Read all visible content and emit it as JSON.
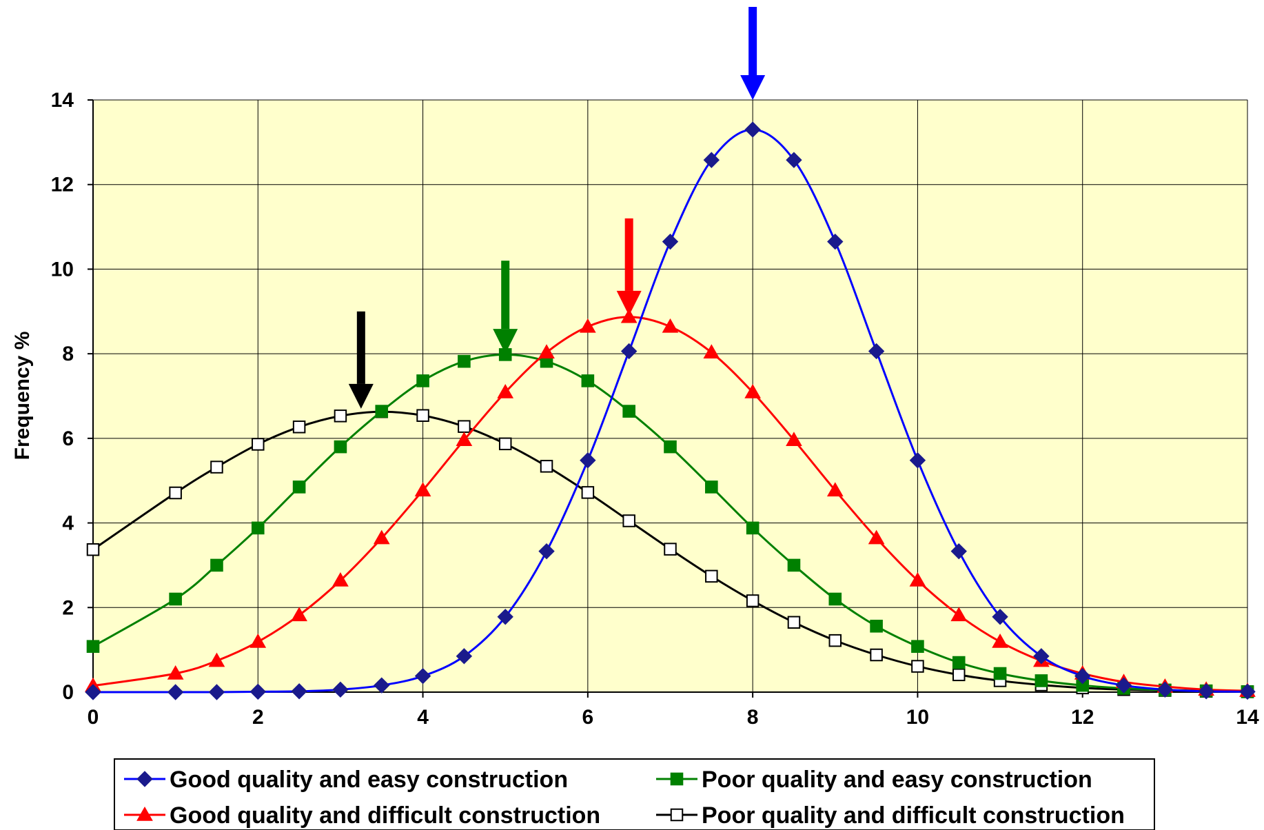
{
  "chart_data": {
    "type": "line",
    "title": "",
    "xlabel": "",
    "ylabel": "Frequency %",
    "xlim": [
      0,
      14
    ],
    "ylim": [
      0,
      14
    ],
    "x_ticks": [
      "0",
      "2",
      "4",
      "6",
      "8",
      "10",
      "12",
      "14"
    ],
    "y_ticks": [
      "0",
      "2",
      "4",
      "6",
      "8",
      "10",
      "12",
      "14"
    ],
    "grid": true,
    "plot_background": "#ffffcc",
    "legend_position": "bottom",
    "x": [
      0,
      1,
      1.5,
      2,
      2.5,
      3,
      3.5,
      4,
      4.5,
      5,
      5.5,
      6,
      6.5,
      7,
      7.5,
      8,
      8.5,
      9,
      9.5,
      10,
      10.5,
      11,
      11.5,
      12,
      12.5,
      13,
      13.5,
      14
    ],
    "series": [
      {
        "name": "Good quality and easy construction",
        "color": "#0000ff",
        "marker_color": "#1a1a8c",
        "marker": "diamond",
        "peak_x": 8,
        "values": [
          0.0,
          0.0,
          0.0,
          0.01,
          0.02,
          0.06,
          0.16,
          0.38,
          0.85,
          1.78,
          3.33,
          5.48,
          8.06,
          10.65,
          12.58,
          13.3,
          12.58,
          10.65,
          8.06,
          5.48,
          3.33,
          1.78,
          0.85,
          0.38,
          0.16,
          0.06,
          0.02,
          0.01
        ]
      },
      {
        "name": "Poor quality and easy construction",
        "color": "#008000",
        "marker_color": "#008000",
        "marker": "square",
        "peak_x": 5,
        "values": [
          1.08,
          2.2,
          3.0,
          3.88,
          4.85,
          5.8,
          6.64,
          7.36,
          7.82,
          7.98,
          7.82,
          7.36,
          6.64,
          5.8,
          4.85,
          3.88,
          3.0,
          2.2,
          1.56,
          1.08,
          0.7,
          0.44,
          0.27,
          0.16,
          0.09,
          0.05,
          0.03,
          0.01
        ]
      },
      {
        "name": "Good quality and difficult construction",
        "color": "#ff0000",
        "marker_color": "#ff0000",
        "marker": "triangle",
        "peak_x": 6.5,
        "values": [
          0.15,
          0.44,
          0.74,
          1.19,
          1.82,
          2.64,
          3.64,
          4.77,
          5.96,
          7.09,
          8.03,
          8.64,
          8.87,
          8.64,
          8.03,
          7.09,
          5.96,
          4.77,
          3.64,
          2.64,
          1.82,
          1.19,
          0.74,
          0.44,
          0.24,
          0.13,
          0.06,
          0.03
        ]
      },
      {
        "name": "Poor quality and difficult construction",
        "color": "#000000",
        "marker_color": "#000000",
        "marker": "open-square",
        "peak_x": 3.25,
        "values": [
          3.37,
          4.71,
          5.32,
          5.86,
          6.27,
          6.53,
          6.63,
          6.54,
          6.28,
          5.87,
          5.34,
          4.72,
          4.05,
          3.38,
          2.74,
          2.16,
          1.65,
          1.22,
          0.88,
          0.61,
          0.41,
          0.27,
          0.17,
          0.1,
          0.06,
          0.04,
          0.02,
          0.01
        ]
      }
    ],
    "arrows": [
      {
        "series": "Good quality and easy construction",
        "color": "#0000ff",
        "x": 8,
        "y_top": 16.2,
        "y_tip": 14.0
      },
      {
        "series": "Poor quality and easy construction",
        "color": "#008000",
        "x": 5,
        "y_top": 10.2,
        "y_tip": 8.0
      },
      {
        "series": "Good quality and difficult construction",
        "color": "#ff0000",
        "x": 6.5,
        "y_top": 11.2,
        "y_tip": 8.9
      },
      {
        "series": "Poor quality and difficult construction",
        "color": "#000000",
        "x": 3.25,
        "y_top": 9.0,
        "y_tip": 6.7
      }
    ]
  }
}
